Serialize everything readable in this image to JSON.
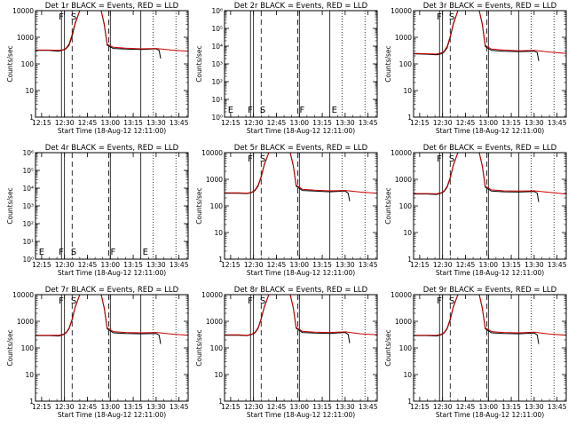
{
  "chart_data": [
    {
      "type": "line",
      "title": "Det 1r BLACK = Events, RED = LLD",
      "xlabel": "Start Time (18-Aug-12 12:11:00)",
      "ylabel": "Counts/sec",
      "yscale": "log",
      "ylim": [
        1,
        10000
      ],
      "ytick_labels": [
        "1",
        "10",
        "100",
        "1000",
        "10000"
      ],
      "xlim": [
        "12:11",
        "13:51"
      ],
      "xtick_labels": [
        "12:15",
        "12:30",
        "12:45",
        "13:00",
        "13:15",
        "13:30",
        "13:45"
      ],
      "markers": [
        "",
        "F",
        "S"
      ],
      "series": [
        {
          "color": "#000000",
          "x": [
            "12:11",
            "12:20",
            "12:26",
            "12:29",
            "12:31",
            "12:33",
            "12:35",
            "12:37",
            "12:40",
            "12:46",
            "12:54",
            "12:56",
            "12:58",
            "13:02",
            "13:10",
            "13:20",
            "13:30",
            "13:32",
            "13:33"
          ],
          "y": [
            320,
            320,
            300,
            330,
            370,
            500,
            1100,
            3200,
            10000,
            10000,
            10000,
            3000,
            500,
            380,
            360,
            350,
            370,
            320,
            160
          ]
        },
        {
          "color": "#cc0000",
          "x": [
            "12:11",
            "12:20",
            "12:26",
            "12:29",
            "12:31",
            "12:33",
            "12:35",
            "12:37",
            "12:40",
            "12:46",
            "12:54",
            "12:56",
            "12:58",
            "13:02",
            "13:10",
            "13:20",
            "13:30",
            "13:40",
            "13:51"
          ],
          "y": [
            330,
            330,
            320,
            340,
            390,
            560,
            1300,
            3500,
            10000,
            10000,
            10000,
            3300,
            550,
            420,
            390,
            370,
            380,
            330,
            300
          ]
        }
      ]
    },
    {
      "type": "line",
      "title": "Det 2r BLACK = Events, RED = LLD",
      "xlabel": "Start Time (18-Aug-12 12:11:00)",
      "ylabel": "Counts/sec",
      "yscale": "log",
      "ylim": [
        1,
        1000000
      ],
      "ytick_labels": [
        "10⁰",
        "10¹",
        "10²",
        "10³",
        "10⁴",
        "10⁵",
        "10⁶"
      ],
      "xlim": [
        "12:11",
        "13:51"
      ],
      "xtick_labels": [
        "12:15",
        "12:30",
        "12:45",
        "13:00",
        "13:15",
        "13:30",
        "13:45"
      ],
      "markers": [
        "E",
        "F",
        "S",
        "F",
        "E"
      ],
      "series": []
    },
    {
      "type": "line",
      "title": "Det 3r BLACK = Events, RED = LLD",
      "xlabel": "Start Time (18-Aug-12 12:11:00)",
      "ylabel": "Counts/sec",
      "yscale": "log",
      "ylim": [
        1,
        10000
      ],
      "ytick_labels": [
        "1",
        "10",
        "100",
        "1000",
        "10000"
      ],
      "xlim": [
        "12:11",
        "13:51"
      ],
      "xtick_labels": [
        "12:15",
        "12:30",
        "12:45",
        "13:00",
        "13:15",
        "13:30",
        "13:45"
      ],
      "markers": [
        "",
        "F",
        "S"
      ],
      "series": [
        {
          "color": "#000000",
          "x": [
            "12:11",
            "12:20",
            "12:26",
            "12:29",
            "12:31",
            "12:33",
            "12:35",
            "12:37",
            "12:40",
            "12:46",
            "12:54",
            "12:56",
            "12:58",
            "13:02",
            "13:10",
            "13:20",
            "13:30",
            "13:32",
            "13:33"
          ],
          "y": [
            240,
            230,
            220,
            240,
            280,
            400,
            1000,
            3000,
            10000,
            10000,
            10000,
            3000,
            450,
            320,
            300,
            290,
            300,
            270,
            130
          ]
        },
        {
          "color": "#cc0000",
          "x": [
            "12:11",
            "12:20",
            "12:26",
            "12:29",
            "12:31",
            "12:33",
            "12:35",
            "12:37",
            "12:40",
            "12:46",
            "12:54",
            "12:56",
            "12:58",
            "13:02",
            "13:10",
            "13:20",
            "13:30",
            "13:40",
            "13:51"
          ],
          "y": [
            250,
            240,
            235,
            255,
            300,
            450,
            1100,
            3300,
            10000,
            10000,
            10000,
            3300,
            500,
            360,
            330,
            310,
            320,
            280,
            250
          ]
        }
      ]
    },
    {
      "type": "line",
      "title": "Det 4r BLACK = Events, RED = LLD",
      "xlabel": "Start Time (18-Aug-12 12:11:00)",
      "ylabel": "Counts/sec",
      "yscale": "log",
      "ylim": [
        1,
        1000000
      ],
      "ytick_labels": [
        "10⁰",
        "10¹",
        "10²",
        "10³",
        "10⁴",
        "10⁵",
        "10⁶"
      ],
      "xlim": [
        "12:11",
        "13:51"
      ],
      "xtick_labels": [
        "12:15",
        "12:30",
        "12:45",
        "13:00",
        "13:15",
        "13:30",
        "13:45"
      ],
      "markers": [
        "E",
        "F",
        "S",
        "F",
        "E"
      ],
      "series": []
    },
    {
      "type": "line",
      "title": "Det 5r BLACK = Events, RED = LLD",
      "xlabel": "Start Time (18-Aug-12 12:11:00)",
      "ylabel": "Counts/sec",
      "yscale": "log",
      "ylim": [
        1,
        10000
      ],
      "ytick_labels": [
        "1",
        "10",
        "100",
        "1000",
        "10000"
      ],
      "xlim": [
        "12:11",
        "13:51"
      ],
      "xtick_labels": [
        "12:15",
        "12:30",
        "12:45",
        "13:00",
        "13:15",
        "13:30",
        "13:45"
      ],
      "markers": [
        "",
        "F",
        "S"
      ],
      "series": [
        {
          "color": "#000000",
          "x": [
            "12:11",
            "12:20",
            "12:26",
            "12:29",
            "12:31",
            "12:33",
            "12:35",
            "12:37",
            "12:40",
            "12:46",
            "12:54",
            "12:56",
            "12:58",
            "13:02",
            "13:10",
            "13:20",
            "13:30",
            "13:32",
            "13:33"
          ],
          "y": [
            300,
            300,
            290,
            320,
            380,
            550,
            1200,
            3400,
            10000,
            10000,
            10000,
            3200,
            550,
            380,
            360,
            340,
            360,
            300,
            150
          ]
        },
        {
          "color": "#cc0000",
          "x": [
            "12:11",
            "12:20",
            "12:26",
            "12:29",
            "12:31",
            "12:33",
            "12:35",
            "12:37",
            "12:40",
            "12:46",
            "12:54",
            "12:56",
            "12:58",
            "13:02",
            "13:10",
            "13:20",
            "13:30",
            "13:40",
            "13:51"
          ],
          "y": [
            310,
            310,
            300,
            330,
            400,
            600,
            1300,
            3600,
            10000,
            10000,
            10000,
            3400,
            600,
            420,
            390,
            370,
            380,
            330,
            300
          ]
        }
      ]
    },
    {
      "type": "line",
      "title": "Det 6r BLACK = Events, RED = LLD",
      "xlabel": "Start Time (18-Aug-12 12:11:00)",
      "ylabel": "Counts/sec",
      "yscale": "log",
      "ylim": [
        1,
        10000
      ],
      "ytick_labels": [
        "1",
        "10",
        "100",
        "1000",
        "10000"
      ],
      "xlim": [
        "12:11",
        "13:51"
      ],
      "xtick_labels": [
        "12:15",
        "12:30",
        "12:45",
        "13:00",
        "13:15",
        "13:30",
        "13:45"
      ],
      "markers": [
        "",
        "F",
        "S"
      ],
      "series": [
        {
          "color": "#000000",
          "x": [
            "12:11",
            "12:20",
            "12:26",
            "12:29",
            "12:31",
            "12:33",
            "12:35",
            "12:37",
            "12:40",
            "12:46",
            "12:54",
            "12:56",
            "12:58",
            "13:02",
            "13:10",
            "13:20",
            "13:30",
            "13:32",
            "13:33"
          ],
          "y": [
            280,
            280,
            270,
            300,
            350,
            500,
            1100,
            3200,
            10000,
            10000,
            10000,
            3100,
            500,
            360,
            340,
            330,
            350,
            300,
            140
          ]
        },
        {
          "color": "#cc0000",
          "x": [
            "12:11",
            "12:20",
            "12:26",
            "12:29",
            "12:31",
            "12:33",
            "12:35",
            "12:37",
            "12:40",
            "12:46",
            "12:54",
            "12:56",
            "12:58",
            "13:02",
            "13:10",
            "13:20",
            "13:30",
            "13:40",
            "13:51"
          ],
          "y": [
            290,
            290,
            285,
            310,
            370,
            540,
            1200,
            3400,
            10000,
            10000,
            10000,
            3300,
            550,
            400,
            370,
            360,
            370,
            320,
            280
          ]
        }
      ]
    },
    {
      "type": "line",
      "title": "Det 7r BLACK = Events, RED = LLD",
      "xlabel": "Start Time (18-Aug-12 12:11:00)",
      "ylabel": "Counts/sec",
      "yscale": "log",
      "ylim": [
        1,
        10000
      ],
      "ytick_labels": [
        "1",
        "10",
        "100",
        "1000",
        "10000"
      ],
      "xlim": [
        "12:11",
        "13:51"
      ],
      "xtick_labels": [
        "12:15",
        "12:30",
        "12:45",
        "13:00",
        "13:15",
        "13:30",
        "13:45"
      ],
      "markers": [
        "",
        "F",
        "S"
      ],
      "series": [
        {
          "color": "#000000",
          "x": [
            "12:11",
            "12:20",
            "12:26",
            "12:29",
            "12:31",
            "12:33",
            "12:35",
            "12:37",
            "12:40",
            "12:46",
            "12:54",
            "12:56",
            "12:58",
            "13:02",
            "13:10",
            "13:20",
            "13:30",
            "13:32",
            "13:33"
          ],
          "y": [
            290,
            290,
            280,
            310,
            360,
            520,
            1150,
            3300,
            10000,
            10000,
            10000,
            3100,
            520,
            370,
            350,
            340,
            350,
            300,
            140
          ]
        },
        {
          "color": "#cc0000",
          "x": [
            "12:11",
            "12:20",
            "12:26",
            "12:29",
            "12:31",
            "12:33",
            "12:35",
            "12:37",
            "12:40",
            "12:46",
            "12:54",
            "12:56",
            "12:58",
            "13:02",
            "13:10",
            "13:20",
            "13:30",
            "13:40",
            "13:51"
          ],
          "y": [
            300,
            300,
            295,
            320,
            380,
            560,
            1250,
            3500,
            10000,
            10000,
            10000,
            3300,
            570,
            410,
            380,
            370,
            380,
            330,
            300
          ]
        }
      ]
    },
    {
      "type": "line",
      "title": "Det 8r BLACK = Events, RED = LLD",
      "xlabel": "Start Time (18-Aug-12 12:11:00)",
      "ylabel": "Counts/sec",
      "yscale": "log",
      "ylim": [
        1,
        10000
      ],
      "ytick_labels": [
        "1",
        "10",
        "100",
        "1000",
        "10000"
      ],
      "xlim": [
        "12:11",
        "13:51"
      ],
      "xtick_labels": [
        "12:15",
        "12:30",
        "12:45",
        "13:00",
        "13:15",
        "13:30",
        "13:45"
      ],
      "markers": [
        "",
        "F",
        "S"
      ],
      "series": [
        {
          "color": "#000000",
          "x": [
            "12:11",
            "12:20",
            "12:26",
            "12:29",
            "12:31",
            "12:33",
            "12:35",
            "12:37",
            "12:40",
            "12:46",
            "12:54",
            "12:56",
            "12:58",
            "13:02",
            "13:10",
            "13:20",
            "13:30",
            "13:32",
            "13:33"
          ],
          "y": [
            300,
            300,
            290,
            320,
            370,
            540,
            1200,
            3300,
            10000,
            10000,
            10000,
            3200,
            540,
            380,
            360,
            350,
            380,
            320,
            150
          ]
        },
        {
          "color": "#cc0000",
          "x": [
            "12:11",
            "12:20",
            "12:26",
            "12:29",
            "12:31",
            "12:33",
            "12:35",
            "12:37",
            "12:40",
            "12:46",
            "12:54",
            "12:56",
            "12:58",
            "13:02",
            "13:10",
            "13:20",
            "13:30",
            "13:40",
            "13:51"
          ],
          "y": [
            310,
            310,
            300,
            330,
            390,
            580,
            1300,
            3500,
            10000,
            10000,
            10000,
            3400,
            590,
            420,
            390,
            380,
            400,
            340,
            310
          ]
        }
      ]
    },
    {
      "type": "line",
      "title": "Det 9r BLACK = Events, RED = LLD",
      "xlabel": "Start Time (18-Aug-12 12:11:00)",
      "ylabel": "Counts/sec",
      "yscale": "log",
      "ylim": [
        1,
        10000
      ],
      "ytick_labels": [
        "1",
        "10",
        "100",
        "1000",
        "10000"
      ],
      "xlim": [
        "12:11",
        "13:51"
      ],
      "xtick_labels": [
        "12:15",
        "12:30",
        "12:45",
        "13:00",
        "13:15",
        "13:30",
        "13:45"
      ],
      "markers": [
        "",
        "F",
        "S"
      ],
      "series": [
        {
          "color": "#000000",
          "x": [
            "12:11",
            "12:20",
            "12:26",
            "12:29",
            "12:31",
            "12:33",
            "12:35",
            "12:37",
            "12:40",
            "12:46",
            "12:54",
            "12:56",
            "12:58",
            "13:02",
            "13:10",
            "13:20",
            "13:30",
            "13:32",
            "13:33"
          ],
          "y": [
            290,
            290,
            280,
            310,
            360,
            520,
            1150,
            3300,
            10000,
            10000,
            10000,
            3100,
            520,
            370,
            350,
            340,
            360,
            310,
            140
          ]
        },
        {
          "color": "#cc0000",
          "x": [
            "12:11",
            "12:20",
            "12:26",
            "12:29",
            "12:31",
            "12:33",
            "12:35",
            "12:37",
            "12:40",
            "12:46",
            "12:54",
            "12:56",
            "12:58",
            "13:02",
            "13:10",
            "13:20",
            "13:30",
            "13:40",
            "13:51"
          ],
          "y": [
            300,
            300,
            295,
            320,
            380,
            560,
            1250,
            3500,
            10000,
            10000,
            10000,
            3300,
            570,
            410,
            380,
            370,
            390,
            330,
            300
          ]
        }
      ]
    }
  ]
}
